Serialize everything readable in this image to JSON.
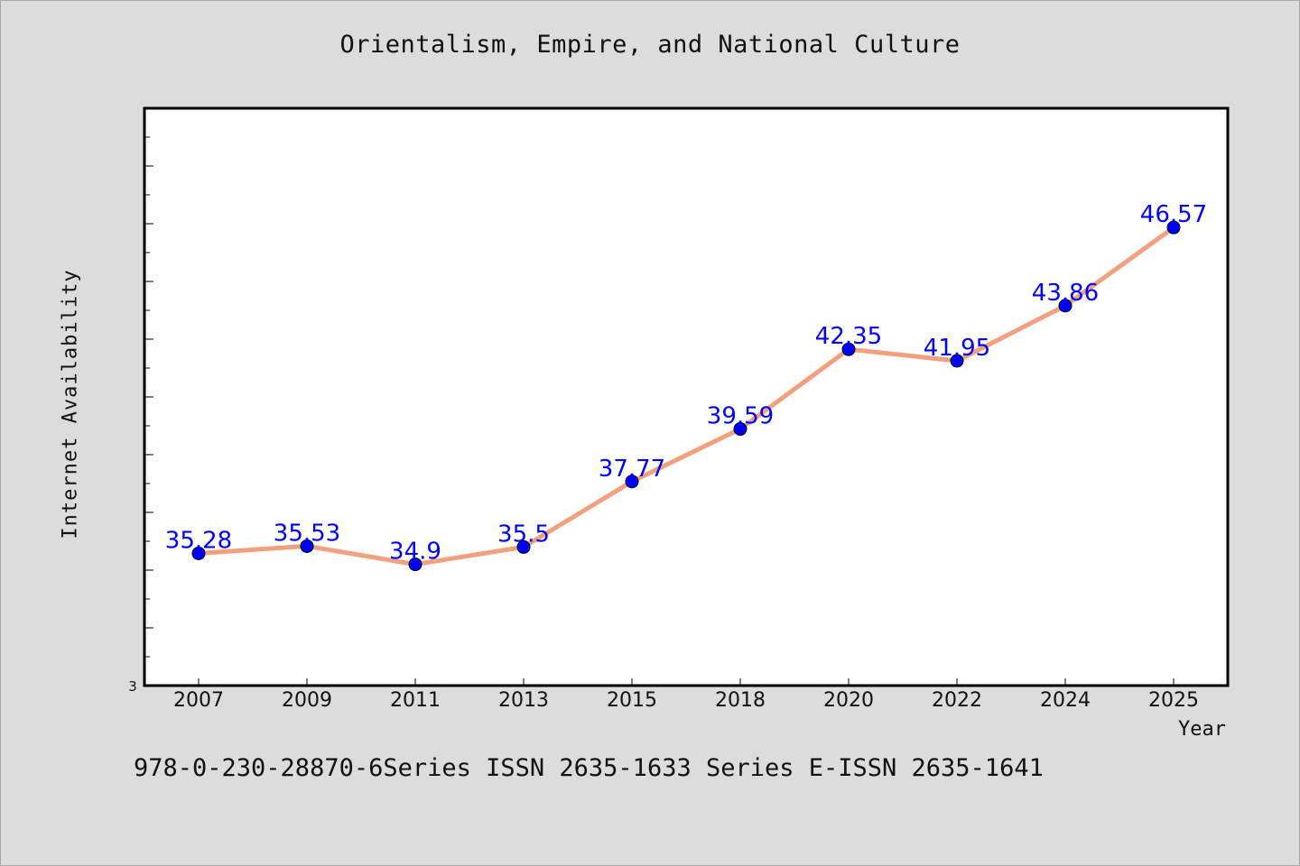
{
  "chart_data": {
    "type": "line",
    "title": "Orientalism, Empire, and National Culture",
    "xlabel": "Year",
    "ylabel": "Internet Availability",
    "categories": [
      "2007",
      "2009",
      "2011",
      "2013",
      "2015",
      "2018",
      "2020",
      "2022",
      "2024",
      "2025"
    ],
    "series": [
      {
        "values": [
          35.28,
          35.53,
          34.9,
          35.5,
          37.77,
          39.59,
          42.35,
          41.95,
          43.86,
          46.57
        ],
        "labels": [
          "35.28",
          "35.53",
          "34.9",
          "35.5",
          "37.77",
          "39.59",
          "42.35",
          "41.95",
          "43.86",
          "46.57"
        ]
      }
    ],
    "y_min_label": "3",
    "ylim": [
      30.7,
      50.7
    ],
    "grid": false,
    "colors": {
      "line": "#f4a07e",
      "marker": "#0000ff",
      "data_label": "#0000ff"
    }
  },
  "footer": "978-0-230-28870-6Series ISSN 2635-1633 Series E-ISSN 2635-1641"
}
